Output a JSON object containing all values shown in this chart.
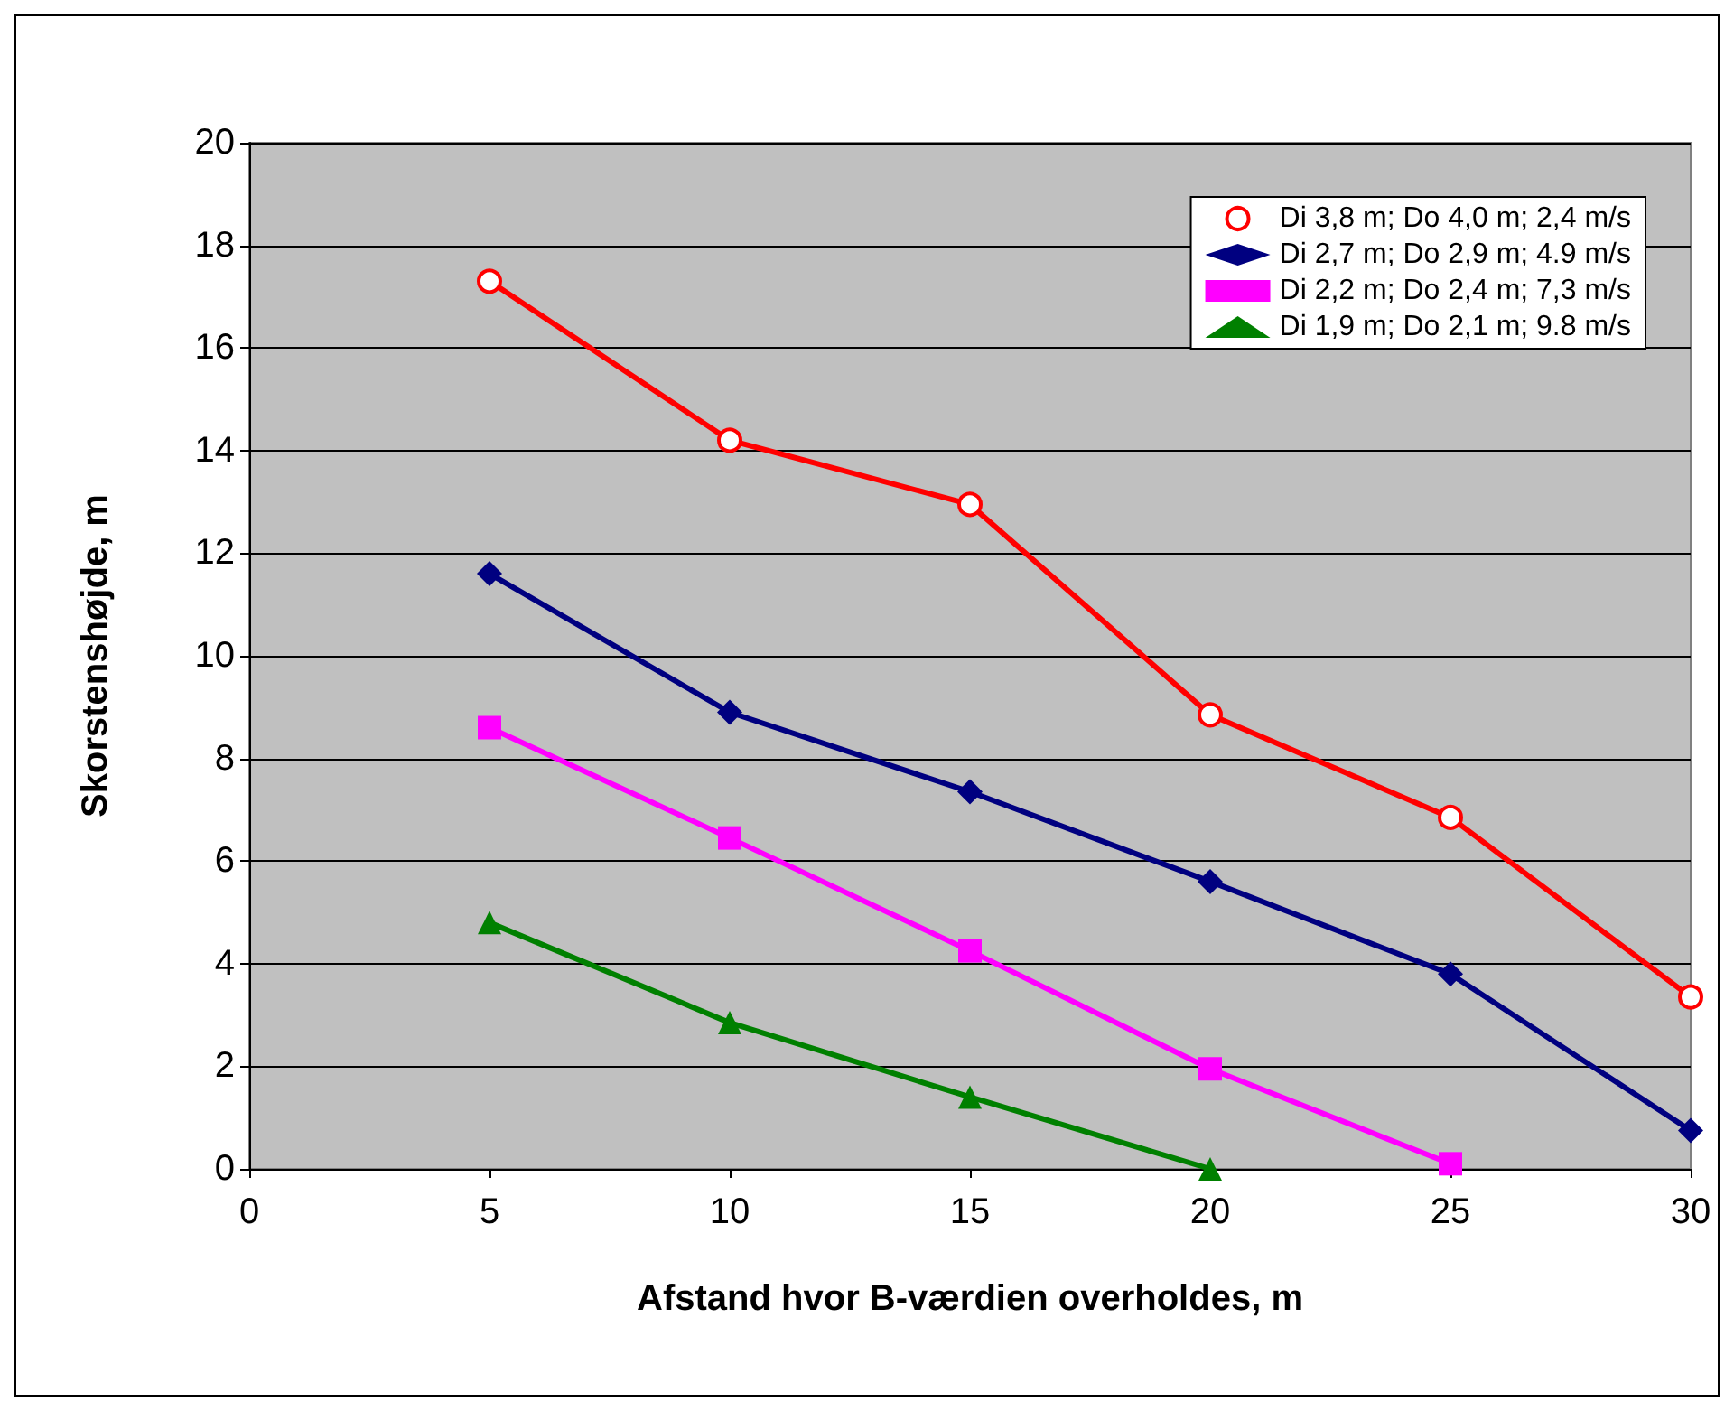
{
  "chart_data": {
    "type": "line",
    "xlabel": "Afstand hvor B-værdien overholdes, m",
    "ylabel": "Skorstenshøjde, m",
    "xlim": [
      0,
      30
    ],
    "xticks": [
      0,
      5,
      10,
      15,
      20,
      25,
      30
    ],
    "ylim": [
      0,
      20
    ],
    "yticks": [
      0,
      2,
      4,
      6,
      8,
      10,
      12,
      14,
      16,
      18,
      20
    ],
    "grid": "y",
    "legend": "top right",
    "line_style": "solid",
    "series": [
      {
        "name": "Di 3,8 m; Do 4,0 m; 2,4 m/s",
        "color": "#ff0000",
        "marker": "circle",
        "x": [
          5,
          10,
          15,
          20,
          25,
          30
        ],
        "values": [
          17.3,
          14.2,
          12.95,
          8.85,
          6.85,
          3.35
        ]
      },
      {
        "name": "Di 2,7 m; Do 2,9 m; 4.9 m/s",
        "color": "#000080",
        "marker": "diamond",
        "x": [
          5,
          10,
          15,
          20,
          25,
          30
        ],
        "values": [
          11.6,
          8.9,
          7.35,
          5.6,
          3.8,
          0.75
        ]
      },
      {
        "name": "Di 2,2 m; Do 2,4 m; 7,3 m/s",
        "color": "#ff00ff",
        "marker": "square",
        "x": [
          5,
          10,
          15,
          20,
          25
        ],
        "values": [
          8.6,
          6.45,
          4.25,
          1.95,
          0.1
        ]
      },
      {
        "name": "Di 1,9 m; Do 2,1 m; 9.8 m/s",
        "color": "#008000",
        "marker": "triangle",
        "x": [
          5,
          10,
          15,
          20
        ],
        "values": [
          4.8,
          2.85,
          1.4,
          0
        ]
      }
    ]
  }
}
